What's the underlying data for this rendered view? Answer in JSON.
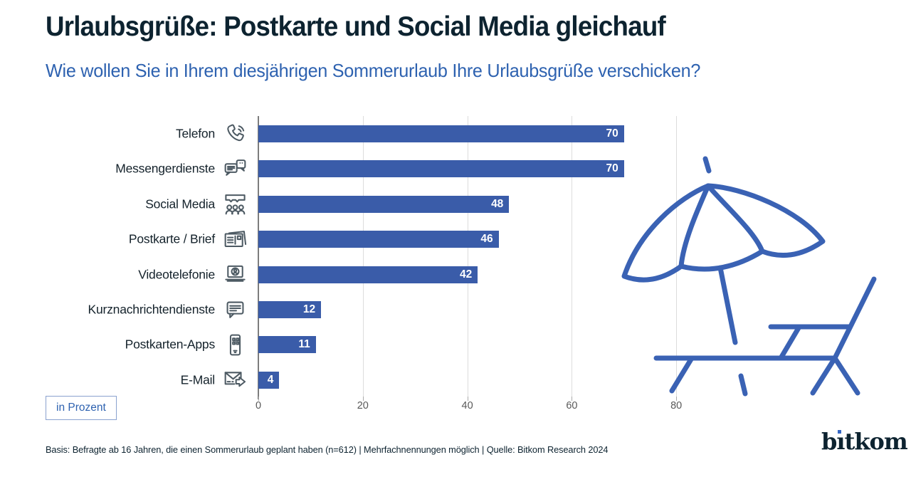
{
  "header": {
    "title": "Urlaubsgrüße: Postkarte und Social Media gleichauf",
    "subtitle": "Wie wollen Sie in Ihrem diesjährigen Sommerurlaub Ihre Urlaubsgrüße verschicken?"
  },
  "chart_data": {
    "type": "bar",
    "orientation": "horizontal",
    "title": "Urlaubsgrüße: Postkarte und Social Media gleichauf",
    "categories": [
      "Telefon",
      "Messengerdienste",
      "Social Media",
      "Postkarte / Brief",
      "Videotelefonie",
      "Kurznachrichtendienste",
      "Postkarten-Apps",
      "E-Mail"
    ],
    "values": [
      70,
      70,
      48,
      46,
      42,
      12,
      11,
      4
    ],
    "icons": [
      "phone-icon",
      "messenger-icon",
      "social-media-icon",
      "postcard-icon",
      "video-call-icon",
      "sms-icon",
      "postcard-app-icon",
      "email-icon"
    ],
    "unit": "Prozent",
    "xlabel": "",
    "ylabel": "",
    "xticks": [
      0,
      20,
      40,
      60,
      80
    ],
    "xlim": [
      0,
      98
    ],
    "grid": "vertical",
    "legend": "none",
    "value_labels": "inside-end, white bold"
  },
  "unit_box": {
    "label": "in Prozent"
  },
  "footer": {
    "text": "Basis: Befragte ab 16 Jahren, die einen Sommerurlaub geplant haben (n=612) | Mehrfachnennungen möglich | Quelle: Bitkom Research 2024"
  },
  "logo": {
    "text": "bitkom",
    "part_b": "b",
    "part_i": "ı",
    "part_rest": "tkom"
  },
  "illustration": {
    "name": "beach-umbrella-and-lounge-chair"
  },
  "colors": {
    "dark_text": "#0d2330",
    "accent_blue": "#2e62b0",
    "bar_blue": "#3a5ca9",
    "illustration_blue": "#3a62b4",
    "icon_gray": "#4d5a63",
    "gridline": "#dcdcdc",
    "tick_label": "#595959"
  }
}
